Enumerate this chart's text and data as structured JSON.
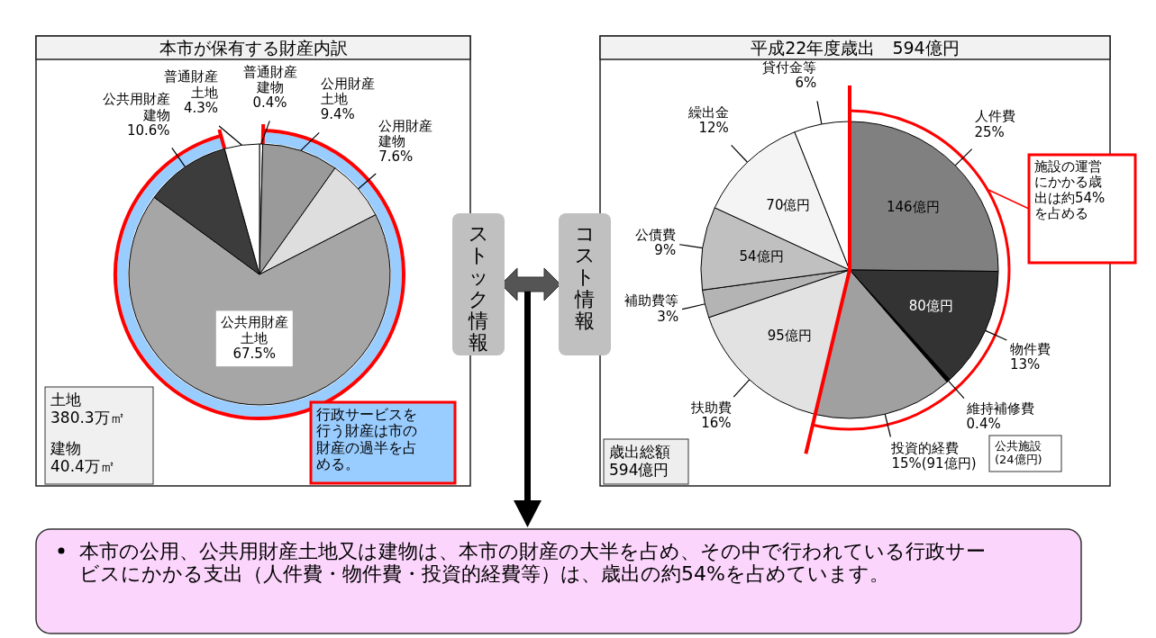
{
  "chart_data": [
    {
      "type": "pie",
      "title": "本市が保有する財産内訳",
      "categories": [
        "普通財産建物",
        "公用財産土地",
        "公用財産建物",
        "公共用財産土地",
        "公共用財産建物",
        "普通財産土地"
      ],
      "values": [
        0.4,
        9.4,
        7.6,
        67.5,
        10.6,
        4.3
      ],
      "colors": [
        "#ffffff",
        "#9a9a9a",
        "#dedede",
        "#a6a6a6",
        "#3c3c3c",
        "#ffffff"
      ],
      "value_labels": [
        "0.4%",
        "9.4%",
        "7.6%",
        "67.5%",
        "10.6%",
        "4.3%"
      ],
      "annotations": [
        "土地\n380.3万㎡",
        "建物\n40.4万㎡",
        "行政サービスを行う財産は市の財産の過半を占める。"
      ]
    },
    {
      "type": "pie",
      "title": "平成22年度歳出　594億円",
      "categories": [
        "人件費",
        "物件費",
        "維持補修費",
        "投資的経費",
        "扶助費",
        "補助費等",
        "公債費",
        "繰出金",
        "貸付金等"
      ],
      "values": [
        25,
        13,
        0.4,
        15,
        16,
        3,
        9,
        12,
        6
      ],
      "colors": [
        "#808080",
        "#333333",
        "#000000",
        "#a0a0a0",
        "#e2e2e2",
        "#b4b4b4",
        "#c0c0c0",
        "#f4f4f4",
        "#ffffff"
      ],
      "value_labels": [
        "25%",
        "13%",
        "0.4%",
        "15%(91億円)",
        "16%",
        "3%",
        "9%",
        "12%",
        "6%"
      ],
      "annotations": [
        "施設の運営にかかる歳出は約54%を占める",
        "歳出総額\n594億円",
        "公共施設\n(24億円)",
        {
          "text": "146億円",
          "x": "人件費"
        },
        {
          "text": "80億円",
          "x": "物件費"
        },
        {
          "text": "95億円",
          "x": "扶助費"
        },
        {
          "text": "54億円",
          "x": "公債費"
        },
        {
          "text": "70億円",
          "x": "繰出金"
        }
      ]
    },
    {
      "type": "other",
      "annotations": [
        "ストック情報",
        "コスト情報",
        "本市の公用、公共用財産土地又は建物は、本市の財産の大半を占め、その中で行われている行政サービスにかかる支出（人件費・物件費・投資的経費等）は、歳出の約54%を占めています。"
      ]
    }
  ]
}
